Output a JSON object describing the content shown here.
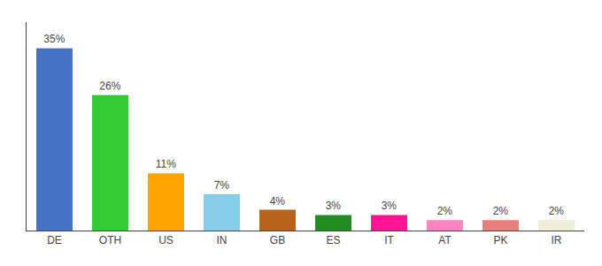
{
  "chart_data": {
    "type": "bar",
    "categories": [
      "DE",
      "OTH",
      "US",
      "IN",
      "GB",
      "ES",
      "IT",
      "AT",
      "PK",
      "IR"
    ],
    "values": [
      35,
      26,
      11,
      7,
      4,
      3,
      3,
      2,
      2,
      2
    ],
    "value_labels": [
      "35%",
      "26%",
      "11%",
      "7%",
      "4%",
      "3%",
      "3%",
      "2%",
      "2%",
      "2%"
    ],
    "colors": [
      "#4472c4",
      "#33cc33",
      "#ffa500",
      "#87ceeb",
      "#b8621a",
      "#228B22",
      "#ff1493",
      "#ff85c2",
      "#e88080",
      "#f0eed8"
    ],
    "ylim": [
      0,
      40
    ],
    "data_labels": true,
    "tick_labels": "x",
    "grid": false
  }
}
